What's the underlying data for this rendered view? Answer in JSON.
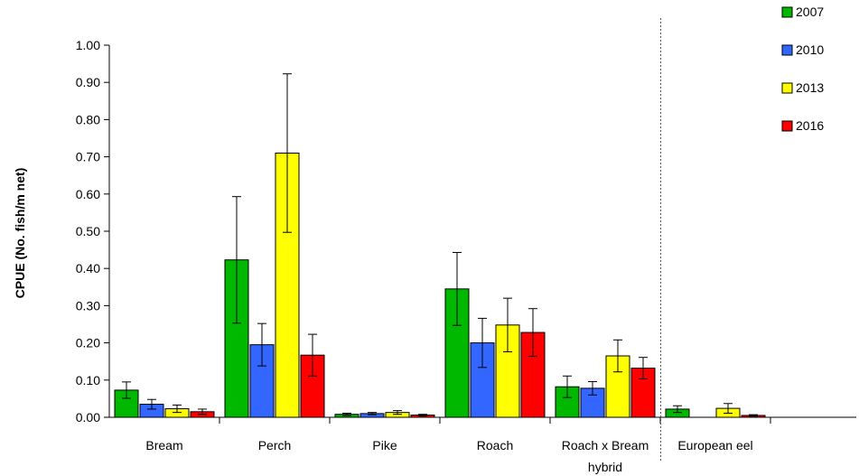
{
  "chart_data": {
    "type": "bar",
    "title": "",
    "xlabel": "",
    "ylabel": "CPUE (No. fish/m net)",
    "ylim": [
      0,
      1
    ],
    "yticks": [
      "0.00",
      "0.10",
      "0.20",
      "0.30",
      "0.40",
      "0.50",
      "0.60",
      "0.70",
      "0.80",
      "0.90",
      "1.00"
    ],
    "categories": [
      {
        "lines": [
          "Bream"
        ]
      },
      {
        "lines": [
          "Perch"
        ]
      },
      {
        "lines": [
          "Pike"
        ]
      },
      {
        "lines": [
          "Roach"
        ]
      },
      {
        "lines": [
          "Roach x Bream",
          "hybrid"
        ]
      },
      {
        "lines": [
          "European eel"
        ]
      }
    ],
    "series": [
      {
        "name": "2007",
        "color": "#00b800",
        "values": [
          0.073,
          0.423,
          0.008,
          0.345,
          0.082,
          0.022
        ],
        "errors": [
          0.022,
          0.17,
          0.003,
          0.098,
          0.029,
          0.009
        ]
      },
      {
        "name": "2010",
        "color": "#3366ff",
        "values": [
          0.035,
          0.195,
          0.01,
          0.2,
          0.078,
          0
        ],
        "errors": [
          0.013,
          0.057,
          0.003,
          0.066,
          0.018,
          0
        ]
      },
      {
        "name": "2013",
        "color": "#ffff00",
        "values": [
          0.023,
          0.71,
          0.013,
          0.248,
          0.165,
          0.024
        ],
        "errors": [
          0.01,
          0.213,
          0.005,
          0.072,
          0.043,
          0.013
        ]
      },
      {
        "name": "2016",
        "color": "#ff0000",
        "values": [
          0.015,
          0.167,
          0.006,
          0.228,
          0.132,
          0.005
        ],
        "errors": [
          0.007,
          0.056,
          0.002,
          0.064,
          0.029,
          0.002
        ]
      }
    ],
    "legend_position": "top-right",
    "grid": false
  }
}
